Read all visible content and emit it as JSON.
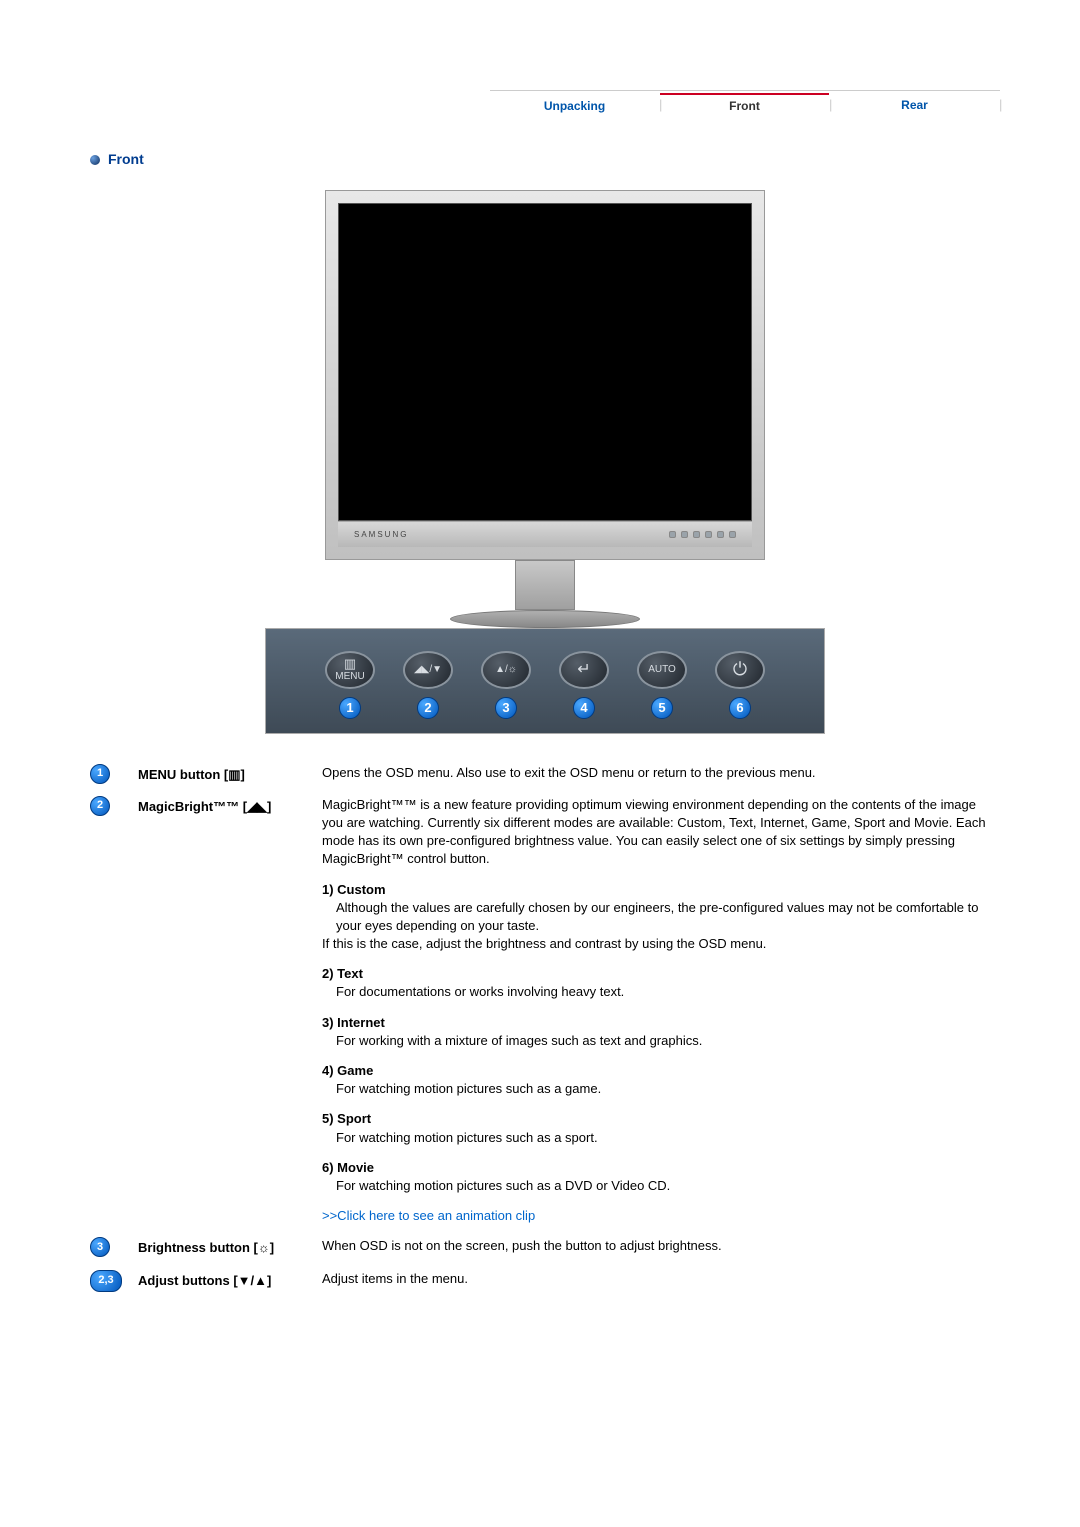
{
  "tabs": {
    "unpacking": "Unpacking",
    "front": "Front",
    "rear": "Rear",
    "active": "front"
  },
  "section_title": "Front",
  "monitor": {
    "brand": "SAMSUNG",
    "bezel_color": "#d8d8d8"
  },
  "panel": {
    "buttons": [
      {
        "icon": "▥",
        "sub": "MENU",
        "num": "1"
      },
      {
        "icon": "◢◣/▼",
        "sub": "",
        "num": "2"
      },
      {
        "icon": "▲/☼",
        "sub": "",
        "num": "3"
      },
      {
        "icon": "↵",
        "sub": "",
        "num": "4"
      },
      {
        "icon": "AUTO",
        "sub": "",
        "num": "5"
      },
      {
        "icon": "⏻",
        "sub": "",
        "num": "6"
      }
    ],
    "bg_gradient_top": "#5a6a7a",
    "bg_gradient_bottom": "#3e4a56"
  },
  "items": {
    "menu": {
      "num": "1",
      "label": "MENU button [▥]",
      "desc": "Opens the OSD menu. Also use to exit the OSD menu or return to the previous menu."
    },
    "magicbright": {
      "num": "2",
      "label": "MagicBright™™ [◢◣]",
      "desc": "MagicBright™™ is a new feature providing optimum viewing environment depending on the contents of the image you are watching. Currently six different modes are available: Custom, Text, Internet, Game, Sport and Movie. Each mode has its own pre-configured brightness value. You can easily select one of six settings by simply pressing MagicBright™ control button.",
      "modes": [
        {
          "title": "1) Custom",
          "body": "Although the values are carefully chosen by our engineers, the pre-configured values may not be comfortable to your eyes depending on your taste.",
          "body2": "If this is the case, adjust the brightness and contrast by using the OSD menu."
        },
        {
          "title": "2) Text",
          "body": "For documentations or works involving heavy text."
        },
        {
          "title": "3) Internet",
          "body": "For working with a mixture of images such as text and graphics."
        },
        {
          "title": "4) Game",
          "body": "For watching motion pictures such as a game."
        },
        {
          "title": "5) Sport",
          "body": "For watching motion pictures such as a sport."
        },
        {
          "title": "6) Movie",
          "body": "For watching motion pictures such as a DVD or Video CD."
        }
      ],
      "link": ">>Click here to see an animation clip"
    },
    "brightness": {
      "num": "3",
      "label": "Brightness button [☼]",
      "desc": "When OSD is not on the screen, push the button to adjust brightness."
    },
    "adjust": {
      "num": "2,3",
      "label": "Adjust buttons [▼/▲]",
      "desc": "Adjust items in the menu."
    }
  },
  "colors": {
    "heading": "#003c8f",
    "link": "#0066cc",
    "front_tab_bar": "#cc0022",
    "bullet_num_bg": "#0066cc"
  }
}
